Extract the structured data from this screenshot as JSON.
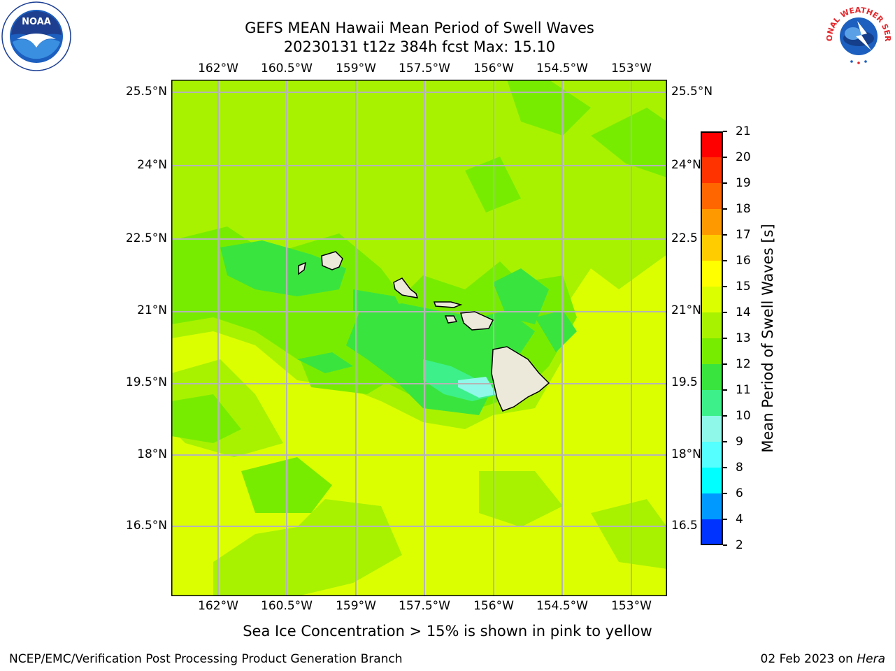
{
  "header": {
    "title_line1": "GEFS MEAN Hawaii Mean Period of Swell Waves",
    "title_line2": "20230131 t12z 384h fcst   Max: 15.10"
  },
  "logos": {
    "left": {
      "name": "NOAA",
      "ring_text": "NATIONAL OCEANIC AND ATMOSPHERIC ADMINISTRATION · U.S. DEPARTMENT OF COMMERCE"
    },
    "right": {
      "name": "NATIONAL WEATHER SERVICE"
    }
  },
  "map": {
    "lon_labels": [
      "162°W",
      "160.5°W",
      "159°W",
      "157.5°W",
      "156°W",
      "154.5°W",
      "153°W"
    ],
    "lat_labels": [
      "25.5°N",
      "24°N",
      "22.5°N",
      "21°N",
      "19.5°N",
      "18°N",
      "16.5°N"
    ],
    "lat_labels_right": [
      "25.5°N",
      "24°N",
      "22.5",
      "21°N",
      "19.5",
      "18°N",
      "16.5"
    ],
    "colors": {
      "base": "#dcff00",
      "band_13": "#a8f200",
      "band_12": "#78ec00",
      "band_11": "#3ae43e",
      "band_10": "#3df08a",
      "band_9": "#8ff8e8",
      "land": "#ede9da",
      "grid": "#b4b4b4"
    }
  },
  "colorbar": {
    "label": "Mean Period of Swell Waves [s]",
    "ticks": [
      "21",
      "20",
      "19",
      "18",
      "17",
      "16",
      "15",
      "14",
      "13",
      "12",
      "11",
      "10",
      "9",
      "8",
      "6",
      "4",
      "2"
    ],
    "colors": [
      "#ff0000",
      "#ff3300",
      "#ff6600",
      "#ff9900",
      "#ffcc00",
      "#ffff00",
      "#dcff00",
      "#a8f200",
      "#78ec00",
      "#3ae43e",
      "#3df08a",
      "#8ff8e8",
      "#55ffff",
      "#00ffff",
      "#0099ff",
      "#0033ff"
    ]
  },
  "subnote": "Sea Ice Concentration > 15% is shown in pink to yellow",
  "footer": {
    "left": "NCEP/EMC/Verification Post Processing Product Generation Branch",
    "right_date": "02 Feb 2023 on ",
    "right_host": "Hera"
  }
}
